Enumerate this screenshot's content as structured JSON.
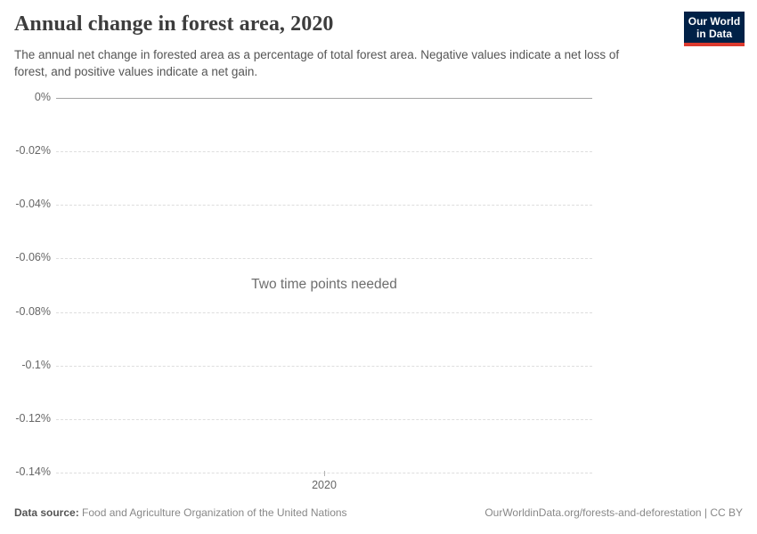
{
  "header": {
    "title": "Annual change in forest area, 2020",
    "subtitle": "The annual net change in forested area as a percentage of total forest area. Negative values indicate a net loss of forest, and positive values indicate a net gain.",
    "logo": {
      "line1": "Our World",
      "line2": "in Data"
    }
  },
  "chart_data": {
    "type": "line",
    "title": "Annual change in forest area, 2020",
    "empty_state_message": "Two time points needed",
    "series": [],
    "x_axis": {
      "ticks": [
        {
          "label": "2020",
          "position": 0.5
        }
      ]
    },
    "y_axis": {
      "unit": "%",
      "range": [
        -0.14,
        0
      ],
      "ticks": [
        {
          "value": 0,
          "label": "0%"
        },
        {
          "value": -0.02,
          "label": "-0.02%"
        },
        {
          "value": -0.04,
          "label": "-0.04%"
        },
        {
          "value": -0.06,
          "label": "-0.06%"
        },
        {
          "value": -0.08,
          "label": "-0.08%"
        },
        {
          "value": -0.1,
          "label": "-0.1%"
        },
        {
          "value": -0.12,
          "label": "-0.12%"
        },
        {
          "value": -0.14,
          "label": "-0.14%"
        }
      ]
    },
    "grid": {
      "horizontal": true,
      "style": "dashed",
      "zero_line": "solid",
      "legend": "none"
    }
  },
  "colors": {
    "logo_bg": "#002147",
    "logo_accent": "#dc3a2e",
    "title_text": "#3d3d3d",
    "subtitle_text": "#555555",
    "axis_label": "#666666",
    "gridline": "#dedede",
    "zero_line": "#a5a5a5",
    "message_text": "#6e6e6e",
    "footer_text": "#888888"
  },
  "footer": {
    "data_source_label": "Data source:",
    "data_source_value": "Food and Agriculture Organization of the United Nations",
    "attribution": "OurWorldinData.org/forests-and-deforestation | CC BY"
  }
}
